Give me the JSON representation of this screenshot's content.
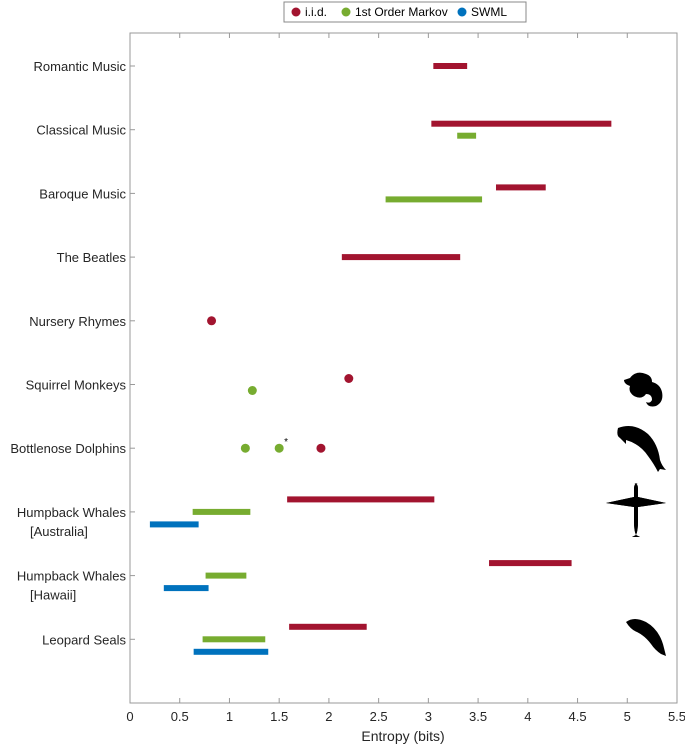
{
  "chart_data": {
    "type": "range-bar",
    "title": "",
    "xlabel": "Entropy (bits)",
    "ylabel": "",
    "xlim": [
      0,
      5.5
    ],
    "xticks": [
      "0",
      "0.5",
      "1",
      "1.5",
      "2",
      "2.5",
      "3",
      "3.5",
      "4",
      "4.5",
      "5",
      "5.5"
    ],
    "grid": false,
    "legend": {
      "placement": "top-center",
      "entries": [
        {
          "key": "iid",
          "label": "i.i.d.",
          "color": "#a2142f"
        },
        {
          "key": "markov",
          "label": "1st Order Markov",
          "color": "#77ac30"
        },
        {
          "key": "swml",
          "label": "SWML",
          "color": "#0072bd"
        }
      ]
    },
    "categories": [
      {
        "label": "Romantic Music",
        "sub": "",
        "icon": "",
        "data": {
          "iid": [
            3.05,
            3.39
          ]
        }
      },
      {
        "label": "Classical Music",
        "sub": "",
        "icon": "",
        "data": {
          "iid": [
            3.03,
            4.84
          ],
          "markov": [
            3.29,
            3.48
          ]
        }
      },
      {
        "label": "Baroque Music",
        "sub": "",
        "icon": "",
        "data": {
          "iid": [
            3.68,
            4.18
          ],
          "markov": [
            2.57,
            3.54
          ]
        }
      },
      {
        "label": "The Beatles",
        "sub": "",
        "icon": "",
        "data": {
          "iid": [
            2.13,
            3.32
          ]
        }
      },
      {
        "label": "Nursery Rhymes",
        "sub": "",
        "icon": "",
        "data": {
          "iid": [
            0.82
          ]
        }
      },
      {
        "label": "Squirrel Monkeys",
        "sub": "",
        "icon": "monkey-icon",
        "data": {
          "markov": [
            1.23
          ],
          "iid": [
            2.2
          ]
        }
      },
      {
        "label": "Bottlenose Dolphins",
        "sub": "",
        "icon": "dolphin-icon",
        "points": [
          {
            "s": "markov",
            "v": 1.16
          },
          {
            "s": "markov",
            "v": 1.5,
            "note": "*"
          },
          {
            "s": "iid",
            "v": 1.92
          }
        ]
      },
      {
        "label": "Humpback Whales",
        "sub": "[Australia]",
        "icon": "whale-icon",
        "data": {
          "iid": [
            1.58,
            3.06
          ],
          "markov": [
            0.63,
            1.21
          ],
          "swml": [
            0.2,
            0.69
          ]
        }
      },
      {
        "label": "Humpback Whales",
        "sub": "[Hawaii]",
        "icon": "whale-icon",
        "data": {
          "iid": [
            3.61,
            4.44
          ],
          "markov": [
            0.76,
            1.17
          ],
          "swml": [
            0.34,
            0.79
          ]
        }
      },
      {
        "label": "Leopard Seals",
        "sub": "",
        "icon": "seal-icon",
        "data": {
          "iid": [
            1.6,
            2.38
          ],
          "markov": [
            0.73,
            1.36
          ],
          "swml": [
            0.64,
            1.39
          ]
        }
      }
    ]
  }
}
